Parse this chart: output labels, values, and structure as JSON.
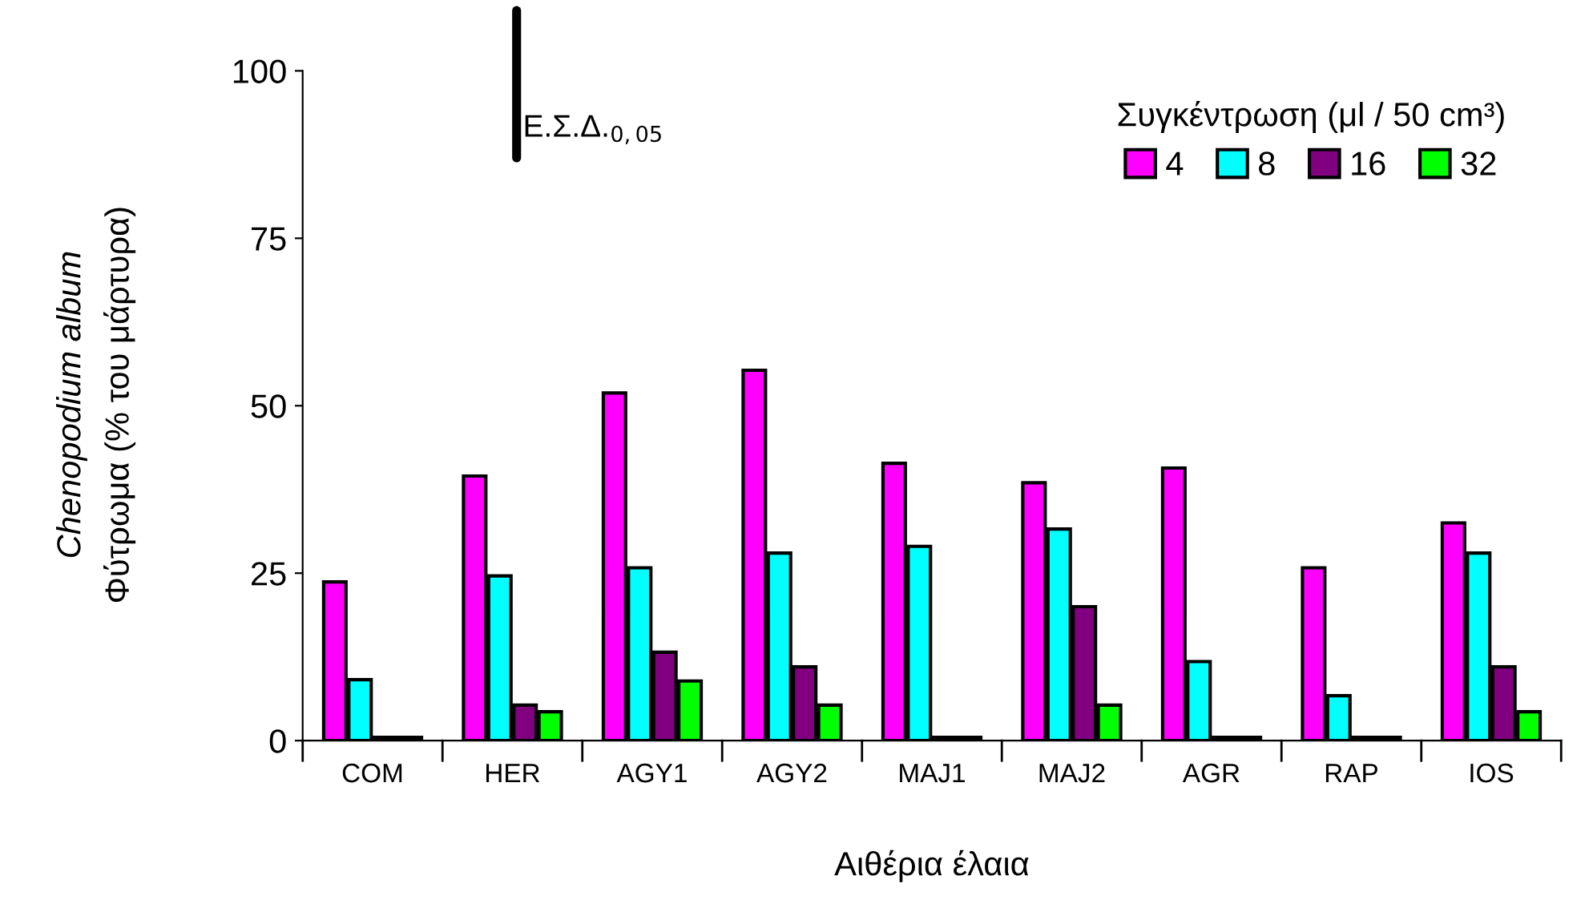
{
  "chart_data": {
    "type": "bar",
    "xlabel": "Αιθέρια έλαια",
    "ylabel": "Chenopodium album\nΦύτρωμα (% του μάρτυρα)",
    "legend_title": "Συγκέντρωση (μl / 50 cm³)",
    "categories": [
      "COM",
      "HER",
      "AGY1",
      "AGY2",
      "MAJ1",
      "MAJ2",
      "AGR",
      "RAP",
      "IOS"
    ],
    "series": [
      {
        "name": "4",
        "color": "#ff00ff",
        "values": [
          23.7,
          39.5,
          51.9,
          55.3,
          41.4,
          38.5,
          40.7,
          25.8,
          32.5
        ]
      },
      {
        "name": "8",
        "color": "#00ffff",
        "values": [
          9.1,
          24.6,
          25.8,
          28,
          29,
          31.6,
          11.8,
          6.7,
          28
        ]
      },
      {
        "name": "16",
        "color": "#800080",
        "values": [
          0.5,
          5.3,
          13.2,
          11,
          0.5,
          20,
          0.5,
          0.5,
          11
        ]
      },
      {
        "name": "32",
        "color": "#00ff00",
        "values": [
          0.5,
          4.3,
          8.9,
          5.3,
          0.5,
          5.3,
          0.5,
          0.5,
          4.3
        ]
      }
    ],
    "ylim": [
      0,
      100
    ],
    "yticks": [
      0,
      25,
      50,
      75,
      100
    ],
    "annotations": [
      "Ε.Σ.Δ.$_{0,05}$"
    ],
    "legend": "top right"
  }
}
